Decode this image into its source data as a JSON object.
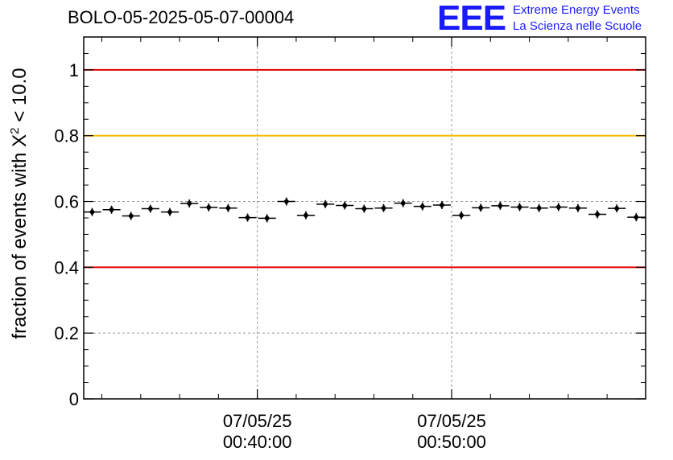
{
  "header": {
    "title": "BOLO-05-2025-05-07-00004",
    "logo_mark": "EEE",
    "logo_line1": "Extreme Energy Events",
    "logo_line2": "La Scienza nelle Scuole"
  },
  "colors": {
    "logo": "#1a1aff",
    "threshold_red": "#e00000",
    "threshold_orange": "#ffbb00",
    "grid": "#999999",
    "points": "#000000"
  },
  "chart_data": {
    "type": "scatter",
    "ylabel": "fraction of events with Χ² < 10.0",
    "ylabel_prefix": "fraction of events with Χ",
    "ylabel_sup": "2",
    "ylabel_suffix": " < 10.0",
    "ylim": [
      0,
      1.1
    ],
    "yticks": [
      0,
      0.2,
      0.4,
      0.6,
      0.8,
      1
    ],
    "ytick_labels": [
      "0",
      "0.2",
      "0.4",
      "0.6",
      "0.8",
      "1"
    ],
    "xlim": [
      "00:31:04",
      "00:59:59"
    ],
    "xticks": [
      {
        "time": "00:40:00",
        "date_label": "07/05/25",
        "time_label": "00:40:00"
      },
      {
        "time": "00:50:00",
        "date_label": "07/05/25",
        "time_label": "00:50:00"
      }
    ],
    "grid": true,
    "reference_lines": [
      {
        "y": 1.0,
        "color": "#e00000"
      },
      {
        "y": 0.8,
        "color": "#ffbb00"
      },
      {
        "y": 0.4,
        "color": "#e00000"
      }
    ],
    "bin_width_minutes": 1,
    "points": [
      {
        "x": "00:31:30",
        "y": 0.568
      },
      {
        "x": "00:32:30",
        "y": 0.575
      },
      {
        "x": "00:33:30",
        "y": 0.556
      },
      {
        "x": "00:34:30",
        "y": 0.578
      },
      {
        "x": "00:35:30",
        "y": 0.568
      },
      {
        "x": "00:36:30",
        "y": 0.594
      },
      {
        "x": "00:37:30",
        "y": 0.582
      },
      {
        "x": "00:38:30",
        "y": 0.58
      },
      {
        "x": "00:39:30",
        "y": 0.551
      },
      {
        "x": "00:40:30",
        "y": 0.549
      },
      {
        "x": "00:41:30",
        "y": 0.6
      },
      {
        "x": "00:42:30",
        "y": 0.558
      },
      {
        "x": "00:43:30",
        "y": 0.592
      },
      {
        "x": "00:44:30",
        "y": 0.588
      },
      {
        "x": "00:45:30",
        "y": 0.578
      },
      {
        "x": "00:46:30",
        "y": 0.58
      },
      {
        "x": "00:47:30",
        "y": 0.595
      },
      {
        "x": "00:48:30",
        "y": 0.585
      },
      {
        "x": "00:49:30",
        "y": 0.589
      },
      {
        "x": "00:50:30",
        "y": 0.558
      },
      {
        "x": "00:51:30",
        "y": 0.581
      },
      {
        "x": "00:52:30",
        "y": 0.587
      },
      {
        "x": "00:53:30",
        "y": 0.583
      },
      {
        "x": "00:54:30",
        "y": 0.58
      },
      {
        "x": "00:55:30",
        "y": 0.583
      },
      {
        "x": "00:56:30",
        "y": 0.58
      },
      {
        "x": "00:57:30",
        "y": 0.561
      },
      {
        "x": "00:58:30",
        "y": 0.579
      },
      {
        "x": "00:59:30",
        "y": 0.552
      }
    ]
  }
}
